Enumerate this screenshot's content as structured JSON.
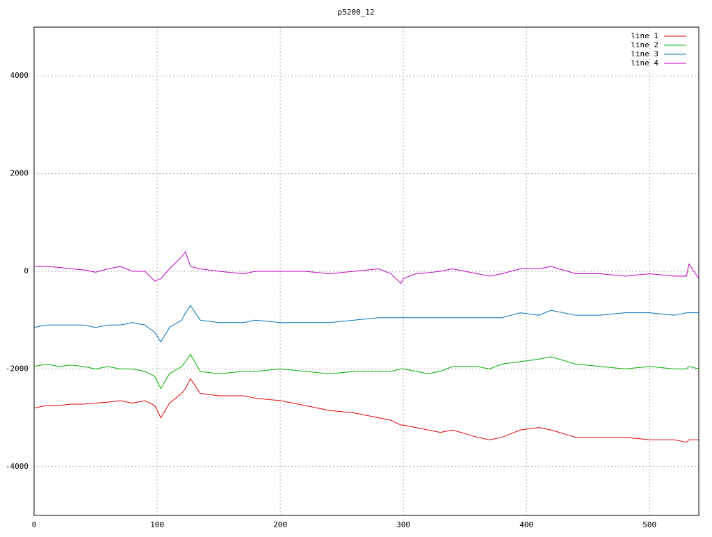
{
  "chart_data": {
    "type": "line",
    "title": "p5200_12",
    "x": [
      0,
      10,
      20,
      30,
      40,
      50,
      60,
      70,
      80,
      90,
      98,
      103,
      110,
      120,
      123,
      127,
      135,
      150,
      170,
      180,
      200,
      220,
      240,
      260,
      280,
      290,
      298,
      300,
      310,
      320,
      330,
      340,
      360,
      370,
      380,
      395,
      410,
      420,
      440,
      460,
      480,
      500,
      520,
      530,
      532,
      540
    ],
    "series": [
      {
        "name": "line 1",
        "color": "#e00000",
        "values": [
          -2800,
          -2750,
          -2750,
          -2720,
          -2720,
          -2700,
          -2680,
          -2650,
          -2700,
          -2650,
          -2750,
          -3000,
          -2700,
          -2500,
          -2400,
          -2200,
          -2500,
          -2550,
          -2550,
          -2600,
          -2650,
          -2750,
          -2850,
          -2900,
          -3000,
          -3050,
          -3150,
          -3150,
          -3200,
          -3250,
          -3300,
          -3250,
          -3400,
          -3450,
          -3400,
          -3250,
          -3200,
          -3250,
          -3400,
          -3400,
          -3400,
          -3450,
          -3450,
          -3500,
          -3450,
          -3450
        ]
      },
      {
        "name": "line 2",
        "color": "#00b000",
        "values": [
          -1950,
          -1900,
          -1950,
          -1920,
          -1950,
          -2000,
          -1950,
          -2000,
          -2000,
          -2050,
          -2150,
          -2400,
          -2100,
          -1950,
          -1850,
          -1700,
          -2050,
          -2100,
          -2050,
          -2050,
          -2000,
          -2050,
          -2100,
          -2050,
          -2050,
          -2050,
          -2000,
          -2000,
          -2050,
          -2100,
          -2050,
          -1950,
          -1950,
          -2000,
          -1900,
          -1850,
          -1800,
          -1750,
          -1900,
          -1950,
          -2000,
          -1950,
          -2000,
          -2000,
          -1950,
          -2000
        ]
      },
      {
        "name": "line 3",
        "color": "#0070c0",
        "values": [
          -1150,
          -1100,
          -1100,
          -1100,
          -1100,
          -1150,
          -1100,
          -1100,
          -1050,
          -1100,
          -1250,
          -1450,
          -1150,
          -1000,
          -850,
          -700,
          -1000,
          -1050,
          -1050,
          -1000,
          -1050,
          -1050,
          -1050,
          -1000,
          -950,
          -950,
          -950,
          -950,
          -950,
          -950,
          -950,
          -950,
          -950,
          -950,
          -950,
          -850,
          -900,
          -800,
          -900,
          -900,
          -850,
          -850,
          -900,
          -850,
          -850,
          -850
        ]
      },
      {
        "name": "line 4",
        "color": "#c000c0",
        "values": [
          100,
          100,
          80,
          50,
          30,
          -20,
          50,
          100,
          0,
          0,
          -200,
          -150,
          50,
          300,
          400,
          100,
          50,
          0,
          -50,
          0,
          0,
          0,
          -50,
          0,
          50,
          -50,
          -250,
          -150,
          -50,
          -30,
          0,
          50,
          -50,
          -100,
          -50,
          50,
          50,
          100,
          -50,
          -50,
          -100,
          -50,
          -100,
          -100,
          150,
          -150
        ]
      }
    ],
    "xlim": [
      0,
      540
    ],
    "xticks": [
      0,
      100,
      200,
      300,
      400,
      500
    ],
    "ylim": [
      -5000,
      5000
    ],
    "yticks": [
      -4000,
      -2000,
      0,
      2000,
      4000
    ],
    "grid": true,
    "legend": "top-right"
  }
}
